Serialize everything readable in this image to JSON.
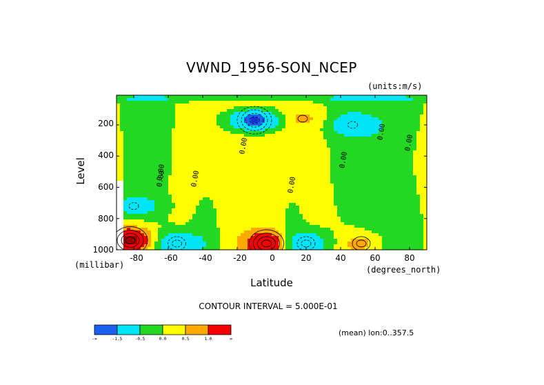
{
  "chart_data": {
    "type": "heatmap",
    "title": "VWND_1956-SON_NCEP",
    "units_label": "(units:m/s)",
    "xlabel": "Latitude",
    "ylabel": "Level",
    "x_units": "(degrees_north)",
    "y_units": "(millibar)",
    "xlim": [
      -90,
      90
    ],
    "ylim": [
      1000,
      10
    ],
    "x_ticks": [
      -80,
      -60,
      -40,
      -20,
      0,
      20,
      40,
      60,
      80
    ],
    "x_tick_labels": [
      "-80",
      "-60",
      "-40",
      "-20",
      "0",
      "20",
      "40",
      "60",
      "80"
    ],
    "y_ticks": [
      200,
      400,
      600,
      800,
      1000
    ],
    "y_tick_labels": [
      "200",
      "400",
      "600",
      "800",
      "1000"
    ],
    "contour_interval_text": "CONTOUR INTERVAL = 5.000E-01",
    "contour_labels": [
      "0.00",
      "0.00",
      "0.00",
      "0.00",
      "0.00",
      "0.00",
      "0.00",
      "0.00",
      "0.00"
    ],
    "footer": "(mean) lon:0..357.5",
    "levels": [
      -1.5,
      -0.5,
      0.0,
      0.5,
      1.0
    ],
    "colorbar_tick_labels": [
      "-∞",
      "-1.5",
      "-0.5",
      "0.0",
      "0.5",
      "1.0",
      "∞"
    ],
    "colorbar_colors": [
      "#1a5ff0",
      "#00e5f5",
      "#22d822",
      "#ffff00",
      "#ffa800",
      "#f50000"
    ],
    "extra_colors": {
      "deep_blue": "#1a2fd0",
      "dark_red": "#a00000",
      "missing": "#ffffff"
    },
    "features": [
      {
        "lat": -10,
        "level": 170,
        "value": -2.0,
        "type": "minimum"
      },
      {
        "lat": -3,
        "level": 960,
        "value": 2.0,
        "type": "maximum"
      },
      {
        "lat": -82,
        "level": 940,
        "value": 2.5,
        "type": "maximum"
      },
      {
        "lat": -55,
        "level": 960,
        "value": -1.0,
        "type": "minimum"
      },
      {
        "lat": 20,
        "level": 960,
        "value": -1.0,
        "type": "minimum"
      },
      {
        "lat": 52,
        "level": 960,
        "value": 1.0,
        "type": "maximum"
      },
      {
        "lat": 18,
        "level": 160,
        "value": 0.7,
        "type": "maximum"
      },
      {
        "lat": 47,
        "level": 200,
        "value": -0.7,
        "type": "minimum"
      },
      {
        "lat": -80,
        "level": 720,
        "value": -0.7,
        "type": "minimum"
      }
    ]
  }
}
